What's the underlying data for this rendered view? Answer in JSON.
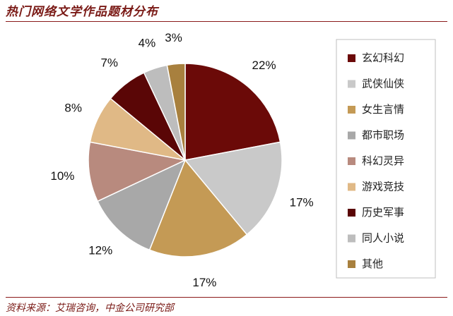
{
  "header": {
    "title": "热门网络文学作品题材分布"
  },
  "footer": {
    "source": "资料来源：艾瑞咨询，中金公司研究部"
  },
  "chart_data": {
    "type": "pie",
    "title": "热门网络文学作品题材分布",
    "start": "12 o'clock, clockwise",
    "slices": [
      {
        "name": "玄幻科幻",
        "value": 22,
        "label": "22%",
        "color": "#6b0a08"
      },
      {
        "name": "武侠仙侠",
        "value": 17,
        "label": "17%",
        "color": "#c9c9c9"
      },
      {
        "name": "女生言情",
        "value": 17,
        "label": "17%",
        "color": "#c49a55"
      },
      {
        "name": "都市职场",
        "value": 12,
        "label": "12%",
        "color": "#a8a8a8"
      },
      {
        "name": "科幻灵异",
        "value": 10,
        "label": "10%",
        "color": "#b88a7e"
      },
      {
        "name": "游戏竞技",
        "value": 8,
        "label": "8%",
        "color": "#e0b986"
      },
      {
        "name": "历史军事",
        "value": 7,
        "label": "7%",
        "color": "#5a0606"
      },
      {
        "name": "同人小说",
        "value": 4,
        "label": "4%",
        "color": "#bdbdbd"
      },
      {
        "name": "其他",
        "value": 3,
        "label": "3%",
        "color": "#a8803e"
      }
    ],
    "legend": "right"
  }
}
